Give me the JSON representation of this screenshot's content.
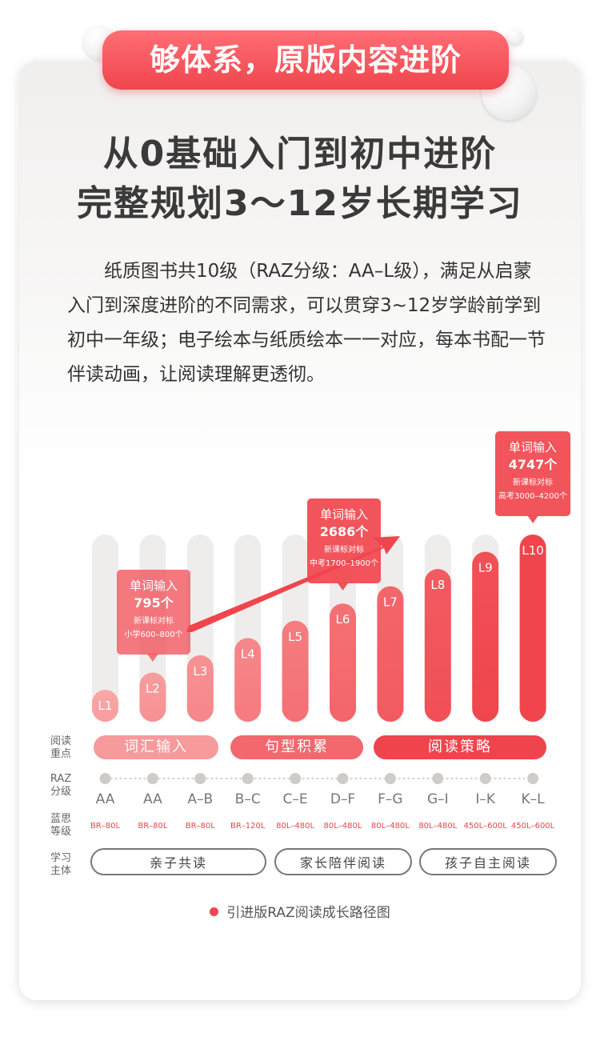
{
  "banner": "够体系，原版内容进阶",
  "headline": [
    "从0基础入门到初中进阶",
    "完整规划3～12岁长期学习"
  ],
  "description": "纸质图书共10级（RAZ分级：AA–L级），满足从启蒙入门到深度进阶的不同需求，可以贯穿3~12岁学龄前学到初中一年级；电子绘本与纸质绘本一一对应，每本书配一节伴读动画，让阅读理解更透彻。",
  "row_labels": {
    "focus": [
      "阅读",
      "重点"
    ],
    "raz": [
      "RAZ",
      "分级"
    ],
    "lexile": [
      "蓝思",
      "等级"
    ],
    "subject": [
      "学习",
      "主体"
    ]
  },
  "focus_pills": [
    "词汇输入",
    "句型积累",
    "阅读策略"
  ],
  "subject_pills": [
    "亲子共读",
    "家长陪伴阅读",
    "孩子自主阅读"
  ],
  "legend": "引进版RAZ阅读成长路径图",
  "colors": {
    "primary": "#f0454d",
    "light": "#f9a8a8",
    "track": "#efedec"
  },
  "chart_data": {
    "type": "bar",
    "categories": [
      "L1",
      "L2",
      "L3",
      "L4",
      "L5",
      "L6",
      "L7",
      "L8",
      "L9",
      "L10"
    ],
    "values": [
      1,
      2,
      3,
      4,
      5,
      6,
      7,
      8,
      9,
      10
    ],
    "raz_levels": [
      "AA",
      "AA",
      "A–B",
      "B–C",
      "C–E",
      "D–F",
      "F–G",
      "G–I",
      "I–K",
      "K–L"
    ],
    "lexile_levels": [
      "BR–80L",
      "BR–80L",
      "BR–80L",
      "BR–120L",
      "80L–480L",
      "80L–480L",
      "80L–480L",
      "80L–480L",
      "450L–600L",
      "450L–600L"
    ],
    "annotations": [
      {
        "level": "L2",
        "lines": [
          "单词输入",
          "795个",
          "新课标对标",
          "小学600–800个"
        ]
      },
      {
        "level": "L6",
        "lines": [
          "单词输入",
          "2686个",
          "新课标对标",
          "中考1700–1900个"
        ]
      },
      {
        "level": "L10",
        "lines": [
          "单词输入",
          "4747个",
          "新课标对标",
          "高考3000–4200个"
        ]
      }
    ]
  }
}
